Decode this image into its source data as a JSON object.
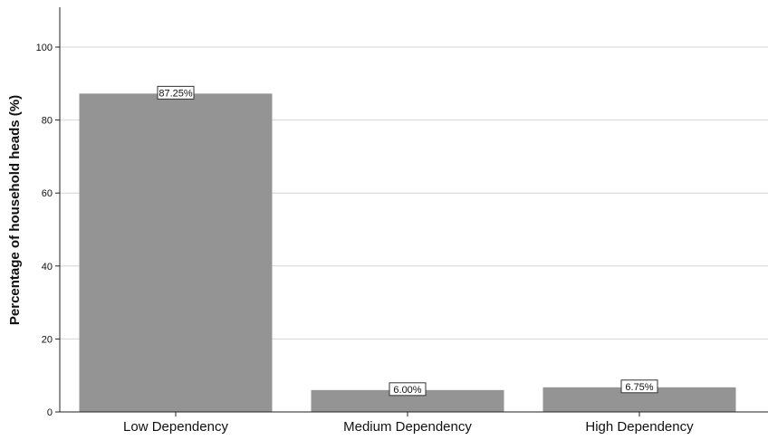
{
  "chart_data": {
    "type": "bar",
    "categories": [
      "Low Dependency",
      "Medium Dependency",
      "High Dependency"
    ],
    "values": [
      87.25,
      6.0,
      6.75
    ],
    "data_labels": [
      "87.25%",
      "6.00%",
      "6.75%"
    ],
    "title": "",
    "xlabel": "",
    "ylabel": "Percentage of household heads (%)",
    "ylim": [
      0,
      100
    ],
    "yticks": [
      0,
      20,
      40,
      60,
      80,
      100
    ],
    "grid": "horizontal",
    "legend": "none",
    "bar_color": "#949494"
  }
}
